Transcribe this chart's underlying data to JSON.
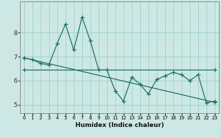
{
  "xlabel": "Humidex (Indice chaleur)",
  "background_color": "#cde8e4",
  "line_color": "#1a6e64",
  "grid_color": "#a0d4cc",
  "xlim": [
    -0.5,
    23.5
  ],
  "ylim": [
    4.65,
    9.3
  ],
  "yticks": [
    5,
    6,
    7,
    8
  ],
  "xtick_labels": [
    "0",
    "1",
    "2",
    "3",
    "4",
    "5",
    "6",
    "7",
    "8",
    "9",
    "10",
    "11",
    "12",
    "13",
    "14",
    "15",
    "16",
    "17",
    "18",
    "19",
    "20",
    "21",
    "22",
    "23"
  ],
  "series1_x": [
    0,
    1,
    2,
    3,
    4,
    5,
    6,
    7,
    8,
    9,
    10,
    11,
    12,
    13,
    14,
    15,
    16,
    17,
    18,
    19,
    20,
    21,
    22,
    23
  ],
  "series1_y": [
    6.95,
    6.88,
    6.72,
    6.65,
    7.55,
    8.35,
    7.28,
    8.65,
    7.65,
    6.45,
    6.45,
    5.58,
    5.15,
    6.15,
    5.85,
    5.45,
    6.05,
    6.2,
    6.35,
    6.25,
    6.0,
    6.25,
    5.08,
    5.15
  ],
  "series2_x": [
    0,
    23
  ],
  "series2_y": [
    6.95,
    5.1
  ],
  "series3_x": [
    0,
    23
  ],
  "series3_y": [
    6.45,
    6.45
  ]
}
